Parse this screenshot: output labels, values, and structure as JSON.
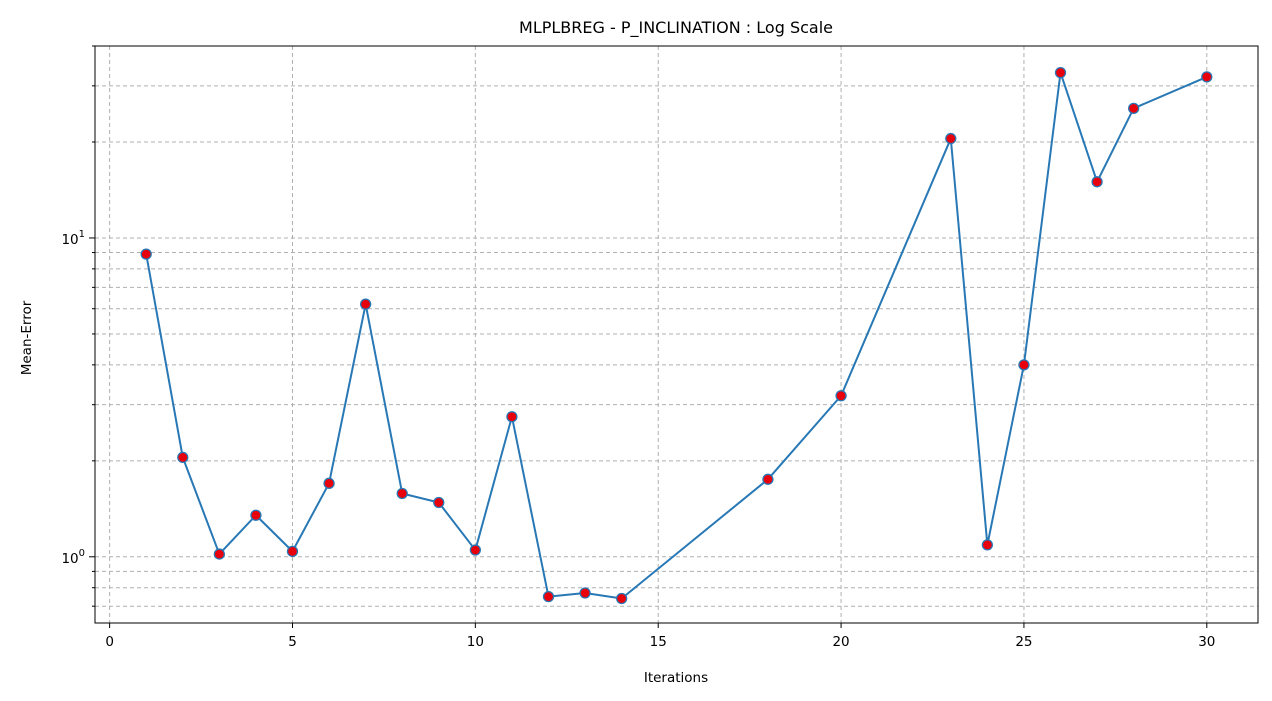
{
  "chart_data": {
    "type": "line",
    "title": "MLPLBREG - P_INCLINATION : Log Scale",
    "xlabel": "Iterations",
    "ylabel": "Mean-Error",
    "xlim": [
      -0.4,
      31.4
    ],
    "ylim": [
      0.62,
      40.0
    ],
    "yscale": "log",
    "grid": true,
    "x_ticks": [
      0,
      5,
      10,
      15,
      20,
      25,
      30
    ],
    "x_tick_labels": [
      "0",
      "5",
      "10",
      "15",
      "20",
      "25",
      "30"
    ],
    "y_major_ticks": [
      1,
      10
    ],
    "y_tick_labels": [
      {
        "base": "10",
        "exp": "0"
      },
      {
        "base": "10",
        "exp": "1"
      }
    ],
    "y_minor_ticks": [
      0.7,
      0.8,
      0.9,
      2,
      3,
      4,
      5,
      6,
      7,
      8,
      9,
      20,
      30,
      40
    ],
    "series": [
      {
        "x": [
          1,
          2,
          3,
          4,
          5,
          6,
          7,
          8,
          9,
          10,
          11,
          12,
          13,
          14,
          18,
          20,
          23,
          24,
          25,
          26,
          27,
          28,
          30
        ],
        "values": [
          8.9,
          2.05,
          1.02,
          1.35,
          1.04,
          1.7,
          6.2,
          1.58,
          1.48,
          1.05,
          2.75,
          0.75,
          0.77,
          0.74,
          1.75,
          3.2,
          20.5,
          1.09,
          4.0,
          33.0,
          15.0,
          25.5,
          32.0
        ]
      }
    ],
    "colors": {
      "line": "#2878b5",
      "marker_fill": "#e8000b",
      "marker_edge": "#2878b5",
      "grid": "#b0b0b0"
    }
  }
}
